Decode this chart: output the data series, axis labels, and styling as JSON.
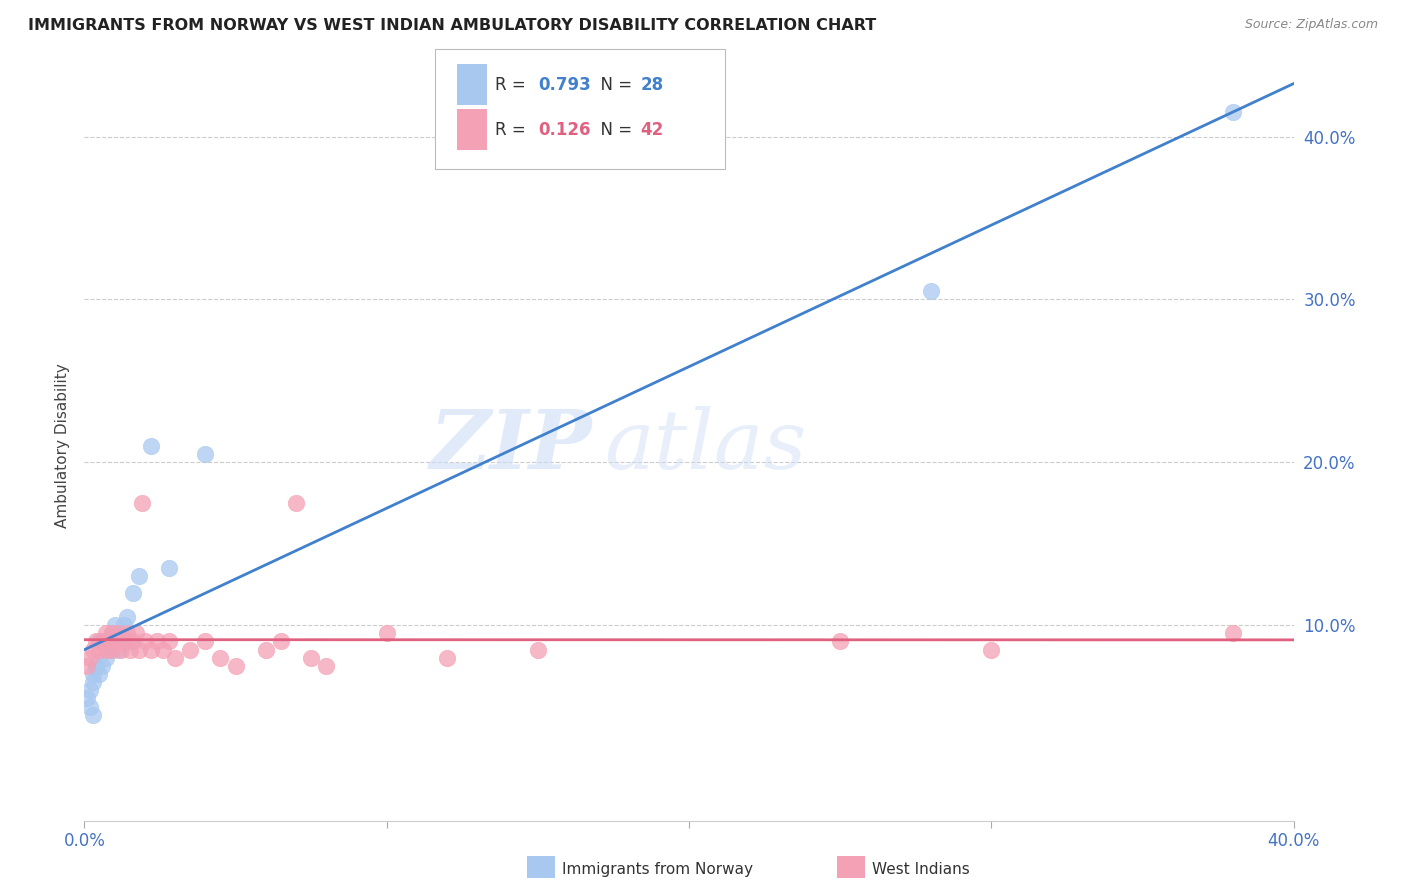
{
  "title": "IMMIGRANTS FROM NORWAY VS WEST INDIAN AMBULATORY DISABILITY CORRELATION CHART",
  "source": "Source: ZipAtlas.com",
  "ylabel": "Ambulatory Disability",
  "norway_R": "0.793",
  "norway_N": "28",
  "westindian_R": "0.126",
  "westindian_N": "42",
  "norway_color": "#a8c8f0",
  "westindian_color": "#f4a0b5",
  "norway_line_color": "#4080cc",
  "westindian_line_color": "#e06080",
  "watermark_zip": "ZIP",
  "watermark_atlas": "atlas",
  "xlim": [
    0.0,
    0.4
  ],
  "ylim": [
    -0.02,
    0.44
  ],
  "ytick_vals": [
    0.1,
    0.2,
    0.3,
    0.4
  ],
  "ytick_labels": [
    "10.0%",
    "20.0%",
    "30.0%",
    "40.0%"
  ],
  "norway_x": [
    0.001,
    0.002,
    0.003,
    0.003,
    0.004,
    0.005,
    0.005,
    0.006,
    0.007,
    0.008,
    0.008,
    0.009,
    0.01,
    0.01,
    0.011,
    0.012,
    0.013,
    0.014,
    0.015,
    0.016,
    0.018,
    0.022,
    0.028,
    0.04,
    0.28,
    0.38,
    0.002,
    0.003
  ],
  "norway_y": [
    0.055,
    0.06,
    0.065,
    0.07,
    0.075,
    0.07,
    0.09,
    0.075,
    0.08,
    0.085,
    0.09,
    0.095,
    0.09,
    0.1,
    0.085,
    0.095,
    0.1,
    0.105,
    0.09,
    0.12,
    0.13,
    0.21,
    0.135,
    0.205,
    0.305,
    0.415,
    0.05,
    0.045
  ],
  "westindian_x": [
    0.001,
    0.002,
    0.003,
    0.004,
    0.005,
    0.006,
    0.007,
    0.007,
    0.008,
    0.009,
    0.009,
    0.01,
    0.011,
    0.012,
    0.013,
    0.014,
    0.015,
    0.016,
    0.017,
    0.018,
    0.019,
    0.02,
    0.022,
    0.024,
    0.026,
    0.028,
    0.03,
    0.035,
    0.04,
    0.045,
    0.05,
    0.06,
    0.065,
    0.07,
    0.075,
    0.08,
    0.1,
    0.12,
    0.15,
    0.25,
    0.3,
    0.38
  ],
  "westindian_y": [
    0.075,
    0.08,
    0.085,
    0.09,
    0.085,
    0.09,
    0.085,
    0.095,
    0.09,
    0.095,
    0.085,
    0.09,
    0.095,
    0.085,
    0.09,
    0.095,
    0.085,
    0.09,
    0.095,
    0.085,
    0.175,
    0.09,
    0.085,
    0.09,
    0.085,
    0.09,
    0.08,
    0.085,
    0.09,
    0.08,
    0.075,
    0.085,
    0.09,
    0.175,
    0.08,
    0.075,
    0.095,
    0.08,
    0.085,
    0.09,
    0.085,
    0.095
  ]
}
